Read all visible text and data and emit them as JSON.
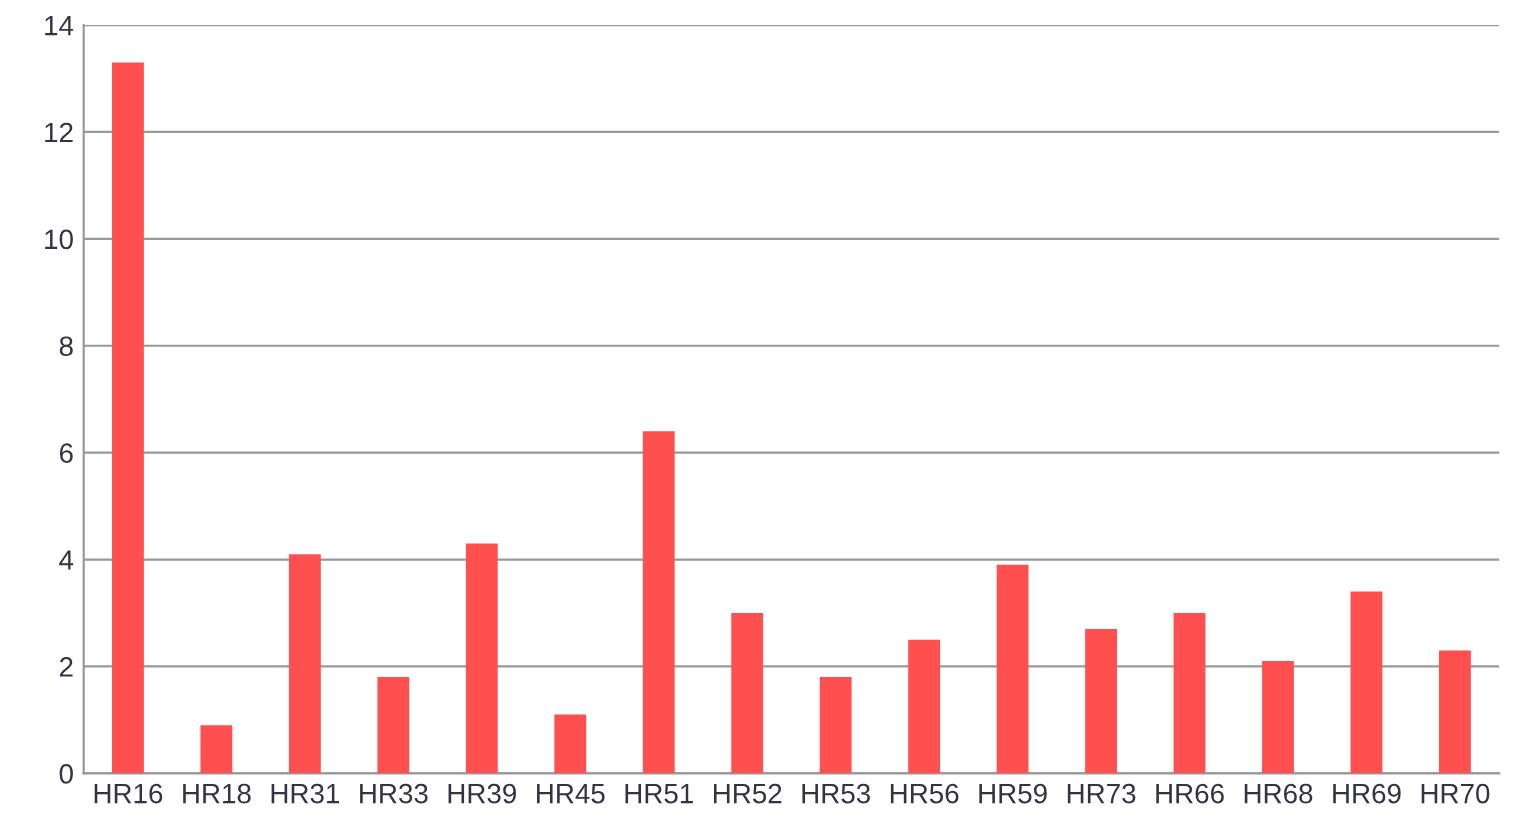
{
  "chart_data": {
    "type": "bar",
    "categories": [
      "HR16",
      "HR18",
      "HR31",
      "HR33",
      "HR39",
      "HR45",
      "HR51",
      "HR52",
      "HR53",
      "HR56",
      "HR59",
      "HR73",
      "HR66",
      "HR68",
      "HR69",
      "HR70"
    ],
    "values": [
      13.3,
      0.9,
      4.1,
      1.8,
      4.3,
      1.1,
      6.4,
      3.0,
      1.8,
      2.5,
      3.9,
      2.7,
      3.0,
      2.1,
      3.4,
      2.3
    ],
    "color": "#ff4f4f",
    "ylim": [
      0,
      14
    ],
    "yticks": [
      0,
      2,
      4,
      6,
      8,
      10,
      12,
      14
    ],
    "grid": "y",
    "legend": false
  }
}
